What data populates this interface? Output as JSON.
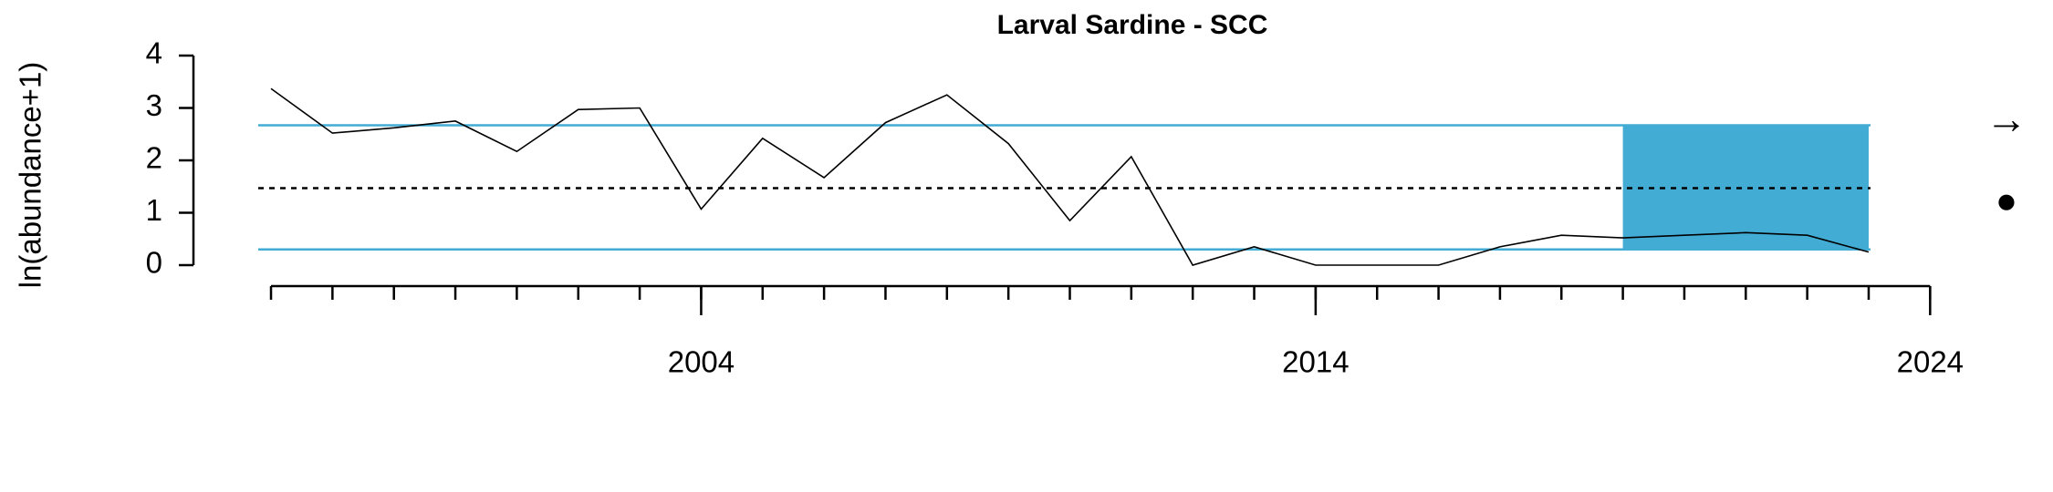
{
  "chart_data": {
    "type": "line",
    "title": "Larval Sardine - SCC",
    "y_label": "ln(abundance+1)",
    "x": [
      1997,
      1998,
      1999,
      2000,
      2001,
      2002,
      2003,
      2004,
      2005,
      2006,
      2007,
      2008,
      2009,
      2010,
      2011,
      2012,
      2013,
      2014,
      2015,
      2016,
      2017,
      2018,
      2019,
      2020,
      2021,
      2022,
      2023
    ],
    "series": [
      {
        "color": "#000000",
        "values": [
          3.37,
          2.52,
          2.62,
          2.75,
          2.17,
          2.97,
          3.0,
          1.07,
          2.42,
          1.67,
          2.72,
          3.25,
          2.32,
          0.85,
          2.07,
          0,
          0.35,
          0,
          0,
          0,
          0.35,
          0.57,
          0.52,
          0.57,
          0.62,
          0.57,
          0.25
        ]
      }
    ],
    "mean": 1.47,
    "upper": 2.67,
    "lower": 0.3,
    "band_color": "#42acd5",
    "shade_x": [
      2019,
      2023
    ],
    "xlim": [
      1995.5,
      2024.5
    ],
    "xticks": [
      2004,
      2014,
      2024
    ],
    "xminor_ticks": [
      1997,
      1998,
      1999,
      2000,
      2001,
      2002,
      2003,
      2004,
      2005,
      2006,
      2007,
      2008,
      2009,
      2010,
      2011,
      2012,
      2013,
      2014,
      2015,
      2016,
      2017,
      2018,
      2019,
      2020,
      2021,
      2022,
      2023,
      2024
    ],
    "ylim": [
      0,
      4
    ],
    "yticks": [
      0,
      1,
      2,
      3,
      4
    ],
    "trend_symbol": "→",
    "mean_symbol": "●"
  }
}
